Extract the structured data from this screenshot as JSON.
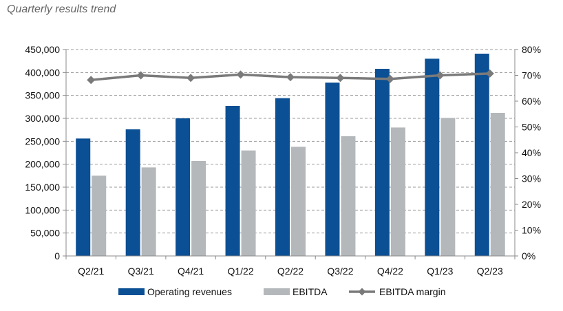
{
  "title": "Quarterly results trend",
  "chart_data": {
    "type": "bar",
    "title": "Quarterly results trend",
    "categories": [
      "Q2/21",
      "Q3/21",
      "Q4/21",
      "Q1/22",
      "Q2/22",
      "Q3/22",
      "Q4/22",
      "Q1/23",
      "Q2/23"
    ],
    "series": [
      {
        "name": "Operating revenues",
        "type": "bar",
        "axis": "left",
        "color": "#0b4f94",
        "values": [
          256000,
          276000,
          300000,
          327000,
          344000,
          378000,
          408000,
          430000,
          441000
        ]
      },
      {
        "name": "EBITDA",
        "type": "bar",
        "axis": "left",
        "color": "#b5b8bb",
        "values": [
          175000,
          193000,
          207000,
          230000,
          238000,
          261000,
          280000,
          301000,
          312000
        ]
      },
      {
        "name": "EBITDA margin",
        "type": "line",
        "axis": "right",
        "color": "#7a7a7a",
        "marker": "diamond",
        "values": [
          68.2,
          70.0,
          69.0,
          70.3,
          69.3,
          69.0,
          68.6,
          70.0,
          70.7
        ]
      }
    ],
    "y_left": {
      "lim": [
        0,
        450000
      ],
      "ticks": [
        0,
        50000,
        100000,
        150000,
        200000,
        250000,
        300000,
        350000,
        400000,
        450000
      ],
      "tick_labels": [
        "0",
        "50,000",
        "100,000",
        "150,000",
        "200,000",
        "250,000",
        "300,000",
        "350,000",
        "400,000",
        "450,000"
      ]
    },
    "y_right": {
      "lim": [
        0,
        80
      ],
      "ticks": [
        0,
        10,
        20,
        30,
        40,
        50,
        60,
        70,
        80
      ],
      "tick_labels": [
        "0%",
        "10%",
        "20%",
        "30%",
        "40%",
        "50%",
        "60%",
        "70%",
        "80%"
      ]
    },
    "grid": true,
    "legend_position": "bottom"
  }
}
